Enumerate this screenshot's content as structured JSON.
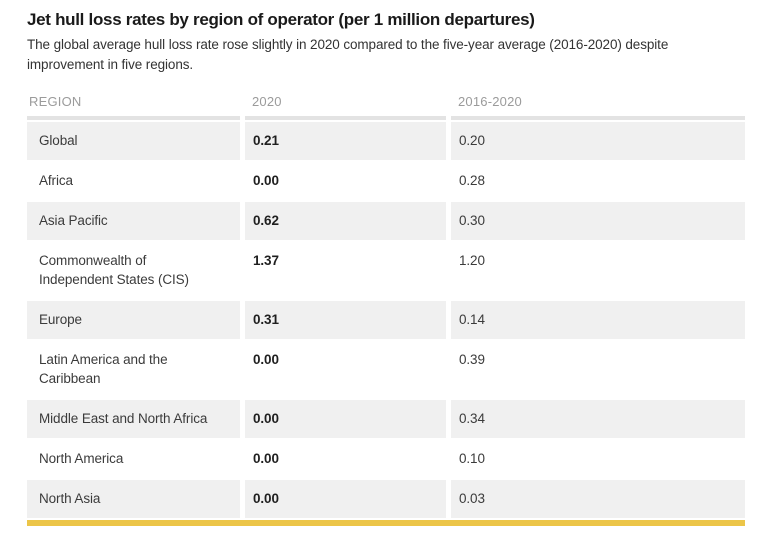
{
  "chart_data": {
    "type": "table",
    "title": "Jet hull loss rates by region of operator (per 1 million departures)",
    "subtitle": "The global average hull loss rate rose slightly in 2020 compared to the five-year average (2016-2020) despite improvement in five regions.",
    "columns": [
      "REGION",
      "2020",
      "2016-2020"
    ],
    "rows": [
      {
        "region": "Global",
        "rate_2020": "0.21",
        "rate_2016_2020": "0.20"
      },
      {
        "region": "Africa",
        "rate_2020": "0.00",
        "rate_2016_2020": "0.28"
      },
      {
        "region": "Asia Pacific",
        "rate_2020": "0.62",
        "rate_2016_2020": "0.30"
      },
      {
        "region": "Commonwealth of Independent States (CIS)",
        "rate_2020": "1.37",
        "rate_2016_2020": "1.20"
      },
      {
        "region": "Europe",
        "rate_2020": "0.31",
        "rate_2016_2020": "0.14"
      },
      {
        "region": "Latin America and the Caribbean",
        "rate_2020": "0.00",
        "rate_2016_2020": "0.39"
      },
      {
        "region": "Middle East and North Africa",
        "rate_2020": "0.00",
        "rate_2016_2020": "0.34"
      },
      {
        "region": "North America",
        "rate_2020": "0.00",
        "rate_2016_2020": "0.10"
      },
      {
        "region": "North Asia",
        "rate_2020": "0.00",
        "rate_2016_2020": "0.03"
      }
    ],
    "layout": {
      "legend": "none",
      "grid": "off",
      "row_striping": "alternating starting with first data row"
    }
  },
  "colors": {
    "accent_bar": "#ecc548",
    "row_stripe": "#f0f0f0",
    "header_rule": "#e3e3e3",
    "header_text": "#9b9b9b",
    "title_text": "#1a1a1a",
    "body_text": "#3b3b3b"
  }
}
